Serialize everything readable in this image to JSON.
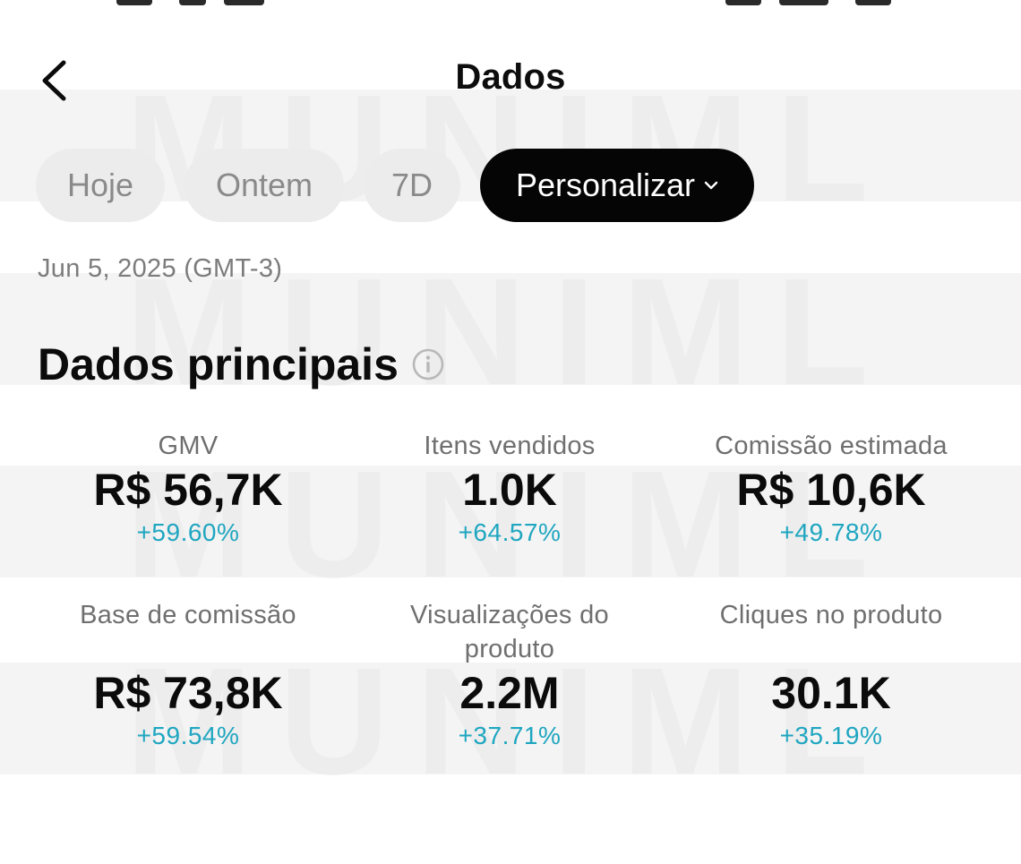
{
  "header": {
    "title": "Dados"
  },
  "tabs": [
    {
      "label": "Hoje",
      "active": false
    },
    {
      "label": "Ontem",
      "active": false
    },
    {
      "label": "7D",
      "active": false
    },
    {
      "label": "Personalizar",
      "active": true
    }
  ],
  "date_label": "Jun 5, 2025 (GMT-3)",
  "section": {
    "title": "Dados principais"
  },
  "metrics": [
    {
      "label": "GMV",
      "value": "R$ 56,7K",
      "change": "+59.60%"
    },
    {
      "label": "Itens vendidos",
      "value": "1.0K",
      "change": "+64.57%"
    },
    {
      "label": "Comissão estimada",
      "value": "R$ 10,6K",
      "change": "+49.78%"
    },
    {
      "label": "Base de comissão",
      "value": "R$ 73,8K",
      "change": "+59.54%"
    },
    {
      "label": "Visualizações do produto",
      "value": "2.2M",
      "change": "+37.71%"
    },
    {
      "label": "Cliques no produto",
      "value": "30.1K",
      "change": "+35.19%"
    }
  ],
  "colors": {
    "accent": "#1fa6c0",
    "active_tab_bg": "#050505",
    "tab_bg": "#ececec"
  },
  "watermark": {
    "text": "MUNIML"
  }
}
